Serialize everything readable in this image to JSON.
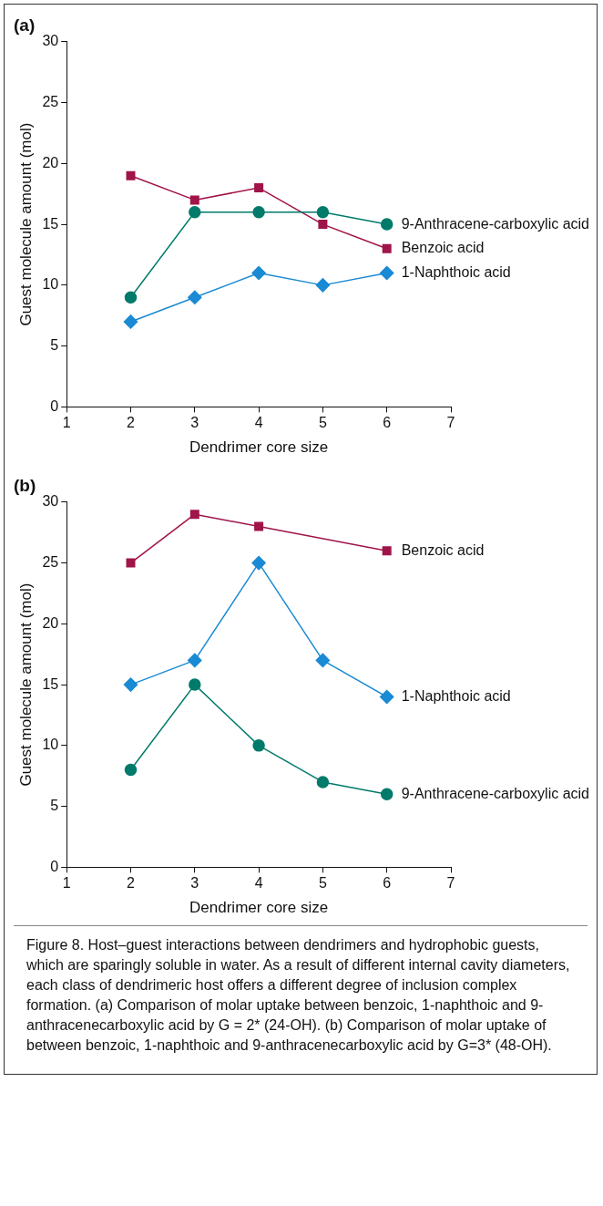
{
  "chart_data": [
    {
      "type": "line",
      "title": "(a)",
      "xlabel": "Dendrimer core size",
      "ylabel": "Guest molecule amount (mol)",
      "x": [
        2,
        3,
        4,
        5,
        6
      ],
      "xlim": [
        1,
        7
      ],
      "xticks": [
        1,
        2,
        3,
        4,
        5,
        6,
        7
      ],
      "ylim": [
        0,
        30
      ],
      "yticks": [
        0,
        5,
        10,
        15,
        20,
        25,
        30
      ],
      "grid": false,
      "legend": false,
      "series": [
        {
          "name": "9-Anthracene-carboxylic acid",
          "color": "#007a6a",
          "marker": "circle",
          "values": [
            9,
            16,
            16,
            16,
            15
          ]
        },
        {
          "name": "Benzoic acid",
          "color": "#a0144a",
          "marker": "square",
          "values": [
            19,
            17,
            18,
            15,
            13
          ]
        },
        {
          "name": "1-Naphthoic acid",
          "color": "#1a8ad4",
          "marker": "diamond",
          "values": [
            7,
            9,
            11,
            10,
            11
          ]
        }
      ]
    },
    {
      "type": "line",
      "title": "(b)",
      "xlabel": "Dendrimer core size",
      "ylabel": "Guest molecule amount (mol)",
      "x": [
        2,
        3,
        4,
        5,
        6
      ],
      "xlim": [
        1,
        7
      ],
      "xticks": [
        1,
        2,
        3,
        4,
        5,
        6,
        7
      ],
      "ylim": [
        0,
        30
      ],
      "yticks": [
        0,
        5,
        10,
        15,
        20,
        25,
        30
      ],
      "grid": false,
      "legend": false,
      "series": [
        {
          "name": "Benzoic acid",
          "color": "#a0144a",
          "marker": "square",
          "x": [
            2,
            3,
            4,
            6
          ],
          "values": [
            25,
            29,
            28,
            26
          ]
        },
        {
          "name": "1-Naphthoic acid",
          "color": "#1a8ad4",
          "marker": "diamond",
          "values": [
            15,
            17,
            25,
            17,
            14
          ]
        },
        {
          "name": "9-Anthracene-carboxylic acid",
          "color": "#007a6a",
          "marker": "circle",
          "values": [
            8,
            15,
            10,
            7,
            6
          ]
        }
      ],
      "annotations": [
        "Figure 8. Host–guest interactions between dendrimers and hydrophobic guests, which are sparingly soluble in water. As a result of different internal cavity diameters, each class of dendrimeric host offers a different degree of inclusion complex formation. (a) Comparison of molar uptake between benzoic, 1-naphthoic and 9-anthracenecarboxylic acid by G = 2* (24-OH). (b) Comparison of molar uptake of between benzoic, 1-naphthoic and 9-anthracenecarboxylic acid by G=3* (48-OH)."
      ]
    }
  ]
}
